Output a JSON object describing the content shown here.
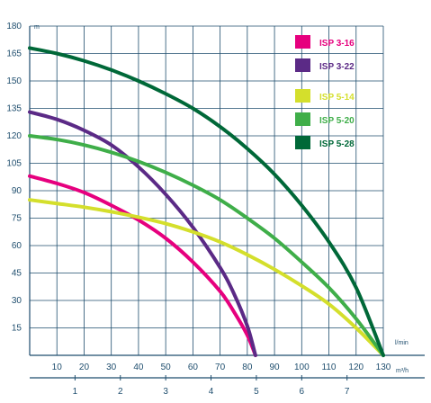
{
  "chart_data": {
    "type": "line",
    "title": "",
    "xlabel": "l/min",
    "ylabel": "m",
    "x2label": "m³/h",
    "xlim": [
      0,
      130
    ],
    "ylim": [
      0,
      180
    ],
    "x2lim": [
      0,
      7.8
    ],
    "xticks": [
      10,
      20,
      30,
      40,
      50,
      60,
      70,
      80,
      90,
      100,
      110,
      120,
      130
    ],
    "yticks": [
      15,
      30,
      45,
      60,
      75,
      90,
      105,
      120,
      135,
      150,
      165,
      180
    ],
    "x2ticks": [
      1,
      2,
      3,
      4,
      5,
      6,
      7
    ],
    "grid": true,
    "legend_position": "top-right",
    "series": [
      {
        "name": "ISP 3-16",
        "color": "#e6007e",
        "x": [
          0,
          10,
          20,
          30,
          40,
          50,
          60,
          70,
          75,
          80,
          83
        ],
        "y": [
          98,
          94,
          89,
          82,
          74,
          64,
          51,
          35,
          24,
          11,
          0
        ]
      },
      {
        "name": "ISP 3-22",
        "color": "#5b2a86",
        "x": [
          0,
          10,
          20,
          30,
          40,
          50,
          60,
          70,
          75,
          80,
          83
        ],
        "y": [
          133,
          129,
          123,
          115,
          103,
          88,
          70,
          48,
          34,
          16,
          0
        ]
      },
      {
        "name": "ISP 5-14",
        "color": "#d4df2c",
        "x": [
          0,
          10,
          20,
          30,
          40,
          50,
          60,
          70,
          80,
          90,
          100,
          110,
          120,
          130
        ],
        "y": [
          85,
          83,
          81,
          78.5,
          75.5,
          72,
          67.5,
          62,
          55,
          47,
          38,
          28,
          15,
          0
        ]
      },
      {
        "name": "ISP 5-20",
        "color": "#3fae49",
        "x": [
          0,
          10,
          20,
          30,
          40,
          50,
          60,
          70,
          80,
          90,
          100,
          110,
          120,
          130
        ],
        "y": [
          120,
          118,
          115,
          111,
          106,
          100,
          93,
          85,
          75,
          64,
          51,
          37,
          20,
          0
        ]
      },
      {
        "name": "ISP 5-28",
        "color": "#006838",
        "x": [
          0,
          10,
          20,
          30,
          40,
          50,
          60,
          70,
          80,
          90,
          100,
          110,
          120,
          130
        ],
        "y": [
          168,
          165,
          161,
          156,
          150,
          143,
          135,
          125,
          113,
          99,
          82,
          62,
          37,
          0
        ]
      }
    ]
  }
}
